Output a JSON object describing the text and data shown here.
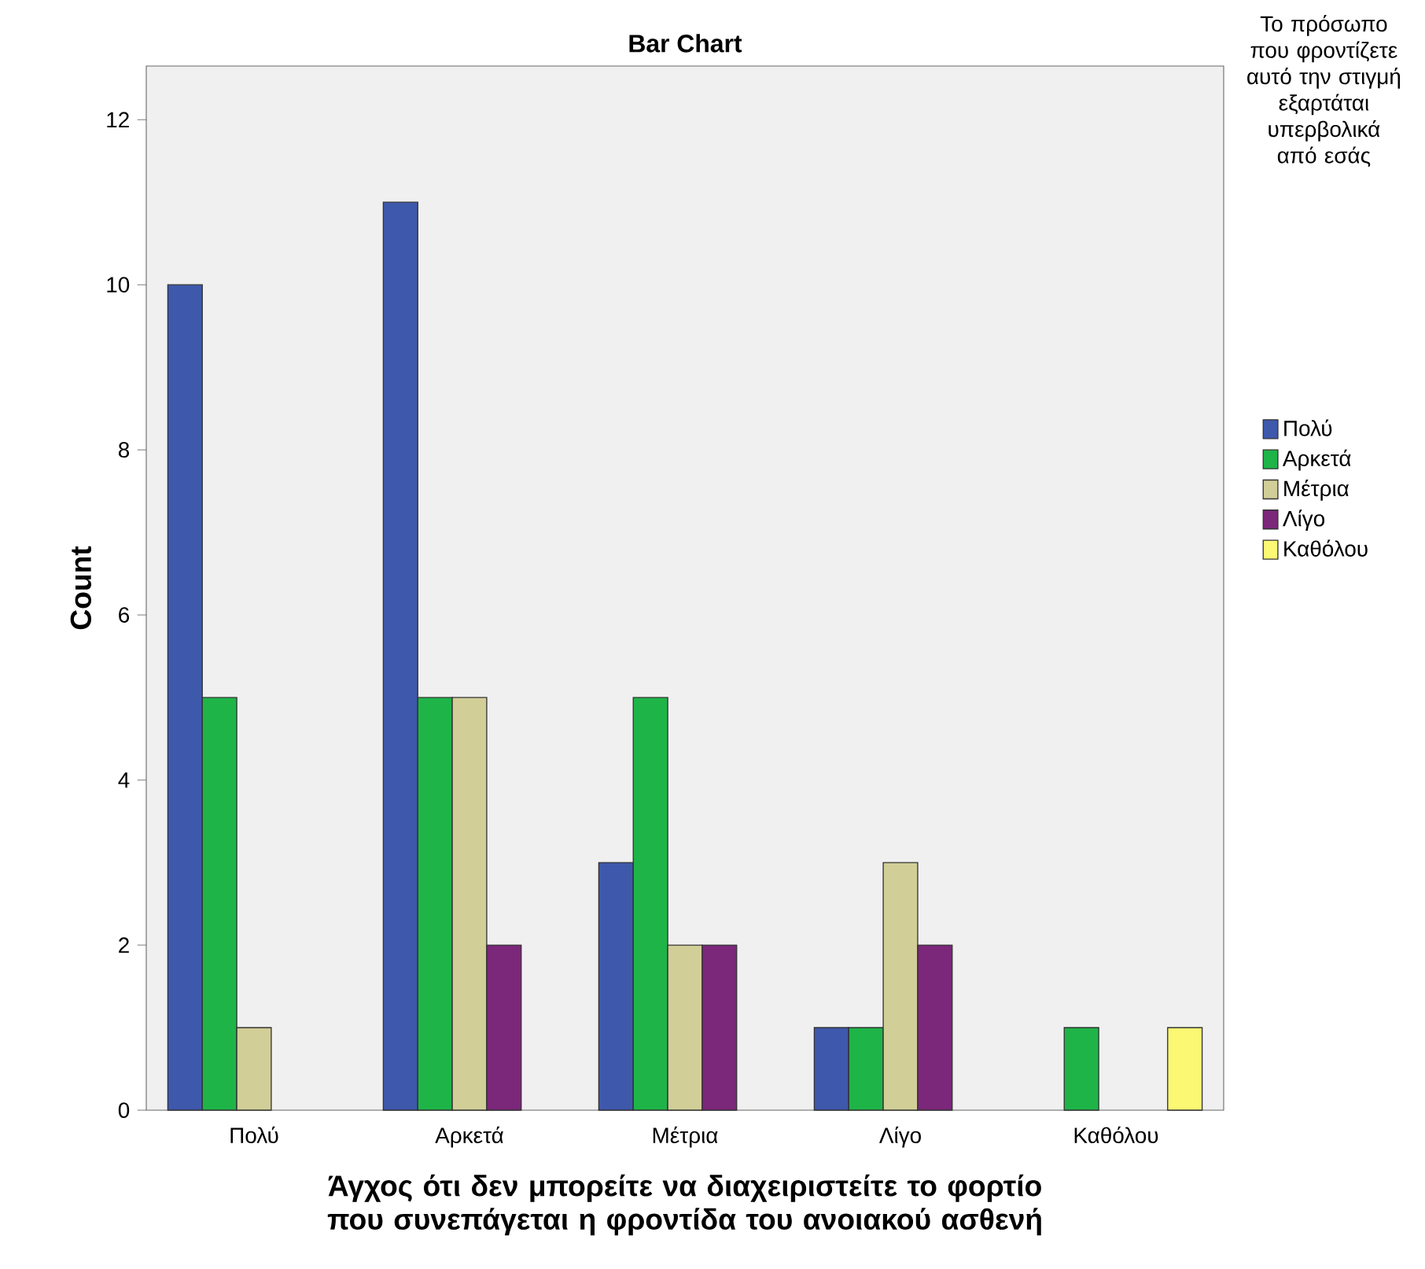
{
  "chart_data": {
    "type": "bar",
    "title": "Bar Chart",
    "xlabel": "Άγχος ότι δεν μπορείτε να διαχειριστείτε το φορτίο που συνεπάγεται η φροντίδα του ανοιακού ασθενή",
    "ylabel": "Count",
    "legend_title": "Το πρόσωπο που φροντίζετε αυτό την στιγμή εξαρτάται υπερβολικά από εσάς",
    "categories": [
      "Πολύ",
      "Αρκετά",
      "Μέτρια",
      "Λίγο",
      "Καθόλου"
    ],
    "series": [
      {
        "name": "Πολύ",
        "color": "#3e58ac",
        "values": [
          10,
          11,
          3,
          1,
          null
        ]
      },
      {
        "name": "Αρκετά",
        "color": "#1fb448",
        "values": [
          5,
          5,
          5,
          1,
          1
        ]
      },
      {
        "name": "Μέτρια",
        "color": "#d2ce97",
        "values": [
          1,
          5,
          2,
          3,
          null
        ]
      },
      {
        "name": "Λίγο",
        "color": "#7b277a",
        "values": [
          null,
          2,
          2,
          2,
          null
        ]
      },
      {
        "name": "Καθόλου",
        "color": "#fbf873",
        "values": [
          null,
          null,
          null,
          null,
          1
        ]
      }
    ],
    "ylim": [
      0,
      12.65
    ],
    "yticks": [
      0,
      2,
      4,
      6,
      8,
      10,
      12
    ],
    "legend": "right"
  }
}
